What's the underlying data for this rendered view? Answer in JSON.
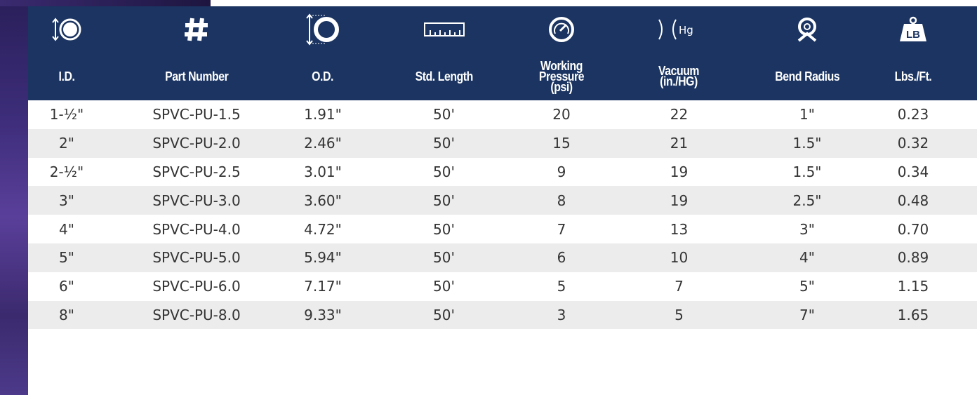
{
  "table": {
    "icon_texts": {
      "vacuum": "Hg",
      "weight": "LB"
    },
    "headers": [
      "I.D.",
      "Part Number",
      "O.D.",
      "Std. Length",
      "Working Pressure\n(psi)",
      "Vacuum\n(in./HG)",
      "Bend Radius",
      "Lbs./Ft."
    ],
    "rows": [
      [
        "1-½\"",
        "SPVC-PU-1.5",
        "1.91\"",
        "50'",
        "20",
        "22",
        "1\"",
        "0.23"
      ],
      [
        "2\"",
        "SPVC-PU-2.0",
        "2.46\"",
        "50'",
        "15",
        "21",
        "1.5\"",
        "0.32"
      ],
      [
        "2-½\"",
        "SPVC-PU-2.5",
        "3.01\"",
        "50'",
        "9",
        "19",
        "1.5\"",
        "0.34"
      ],
      [
        "3\"",
        "SPVC-PU-3.0",
        "3.60\"",
        "50'",
        "8",
        "19",
        "2.5\"",
        "0.48"
      ],
      [
        "4\"",
        "SPVC-PU-4.0",
        "4.72\"",
        "50'",
        "7",
        "13",
        "3\"",
        "0.70"
      ],
      [
        "5\"",
        "SPVC-PU-5.0",
        "5.94\"",
        "50'",
        "6",
        "10",
        "4\"",
        "0.89"
      ],
      [
        "6\"",
        "SPVC-PU-6.0",
        "7.17\"",
        "50'",
        "5",
        "7",
        "5\"",
        "1.15"
      ],
      [
        "8\"",
        "SPVC-PU-8.0",
        "9.33\"",
        "50'",
        "3",
        "5",
        "7\"",
        "1.65"
      ]
    ]
  }
}
